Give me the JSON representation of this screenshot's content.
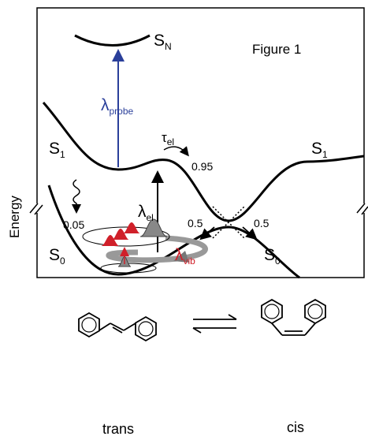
{
  "figure_title": "Figure 1",
  "axis_label": "Energy",
  "states": [
    {
      "symbol": "S",
      "subscript": "N"
    },
    {
      "symbol": "S",
      "subscript": "1"
    },
    {
      "symbol": "S",
      "subscript": "1"
    },
    {
      "symbol": "S",
      "subscript": "0"
    },
    {
      "symbol": "S",
      "subscript": "0"
    }
  ],
  "wavelengths": [
    {
      "symbol": "λ",
      "subscript": "probe"
    },
    {
      "symbol": "λ",
      "subscript": "el"
    },
    {
      "symbol": "λ",
      "subscript": "vib"
    }
  ],
  "tau": {
    "symbol": "τ",
    "subscript": "el"
  },
  "yields": [
    0.95,
    0.05,
    0.5,
    0.5
  ],
  "molecules": [
    "trans",
    "cis"
  ]
}
